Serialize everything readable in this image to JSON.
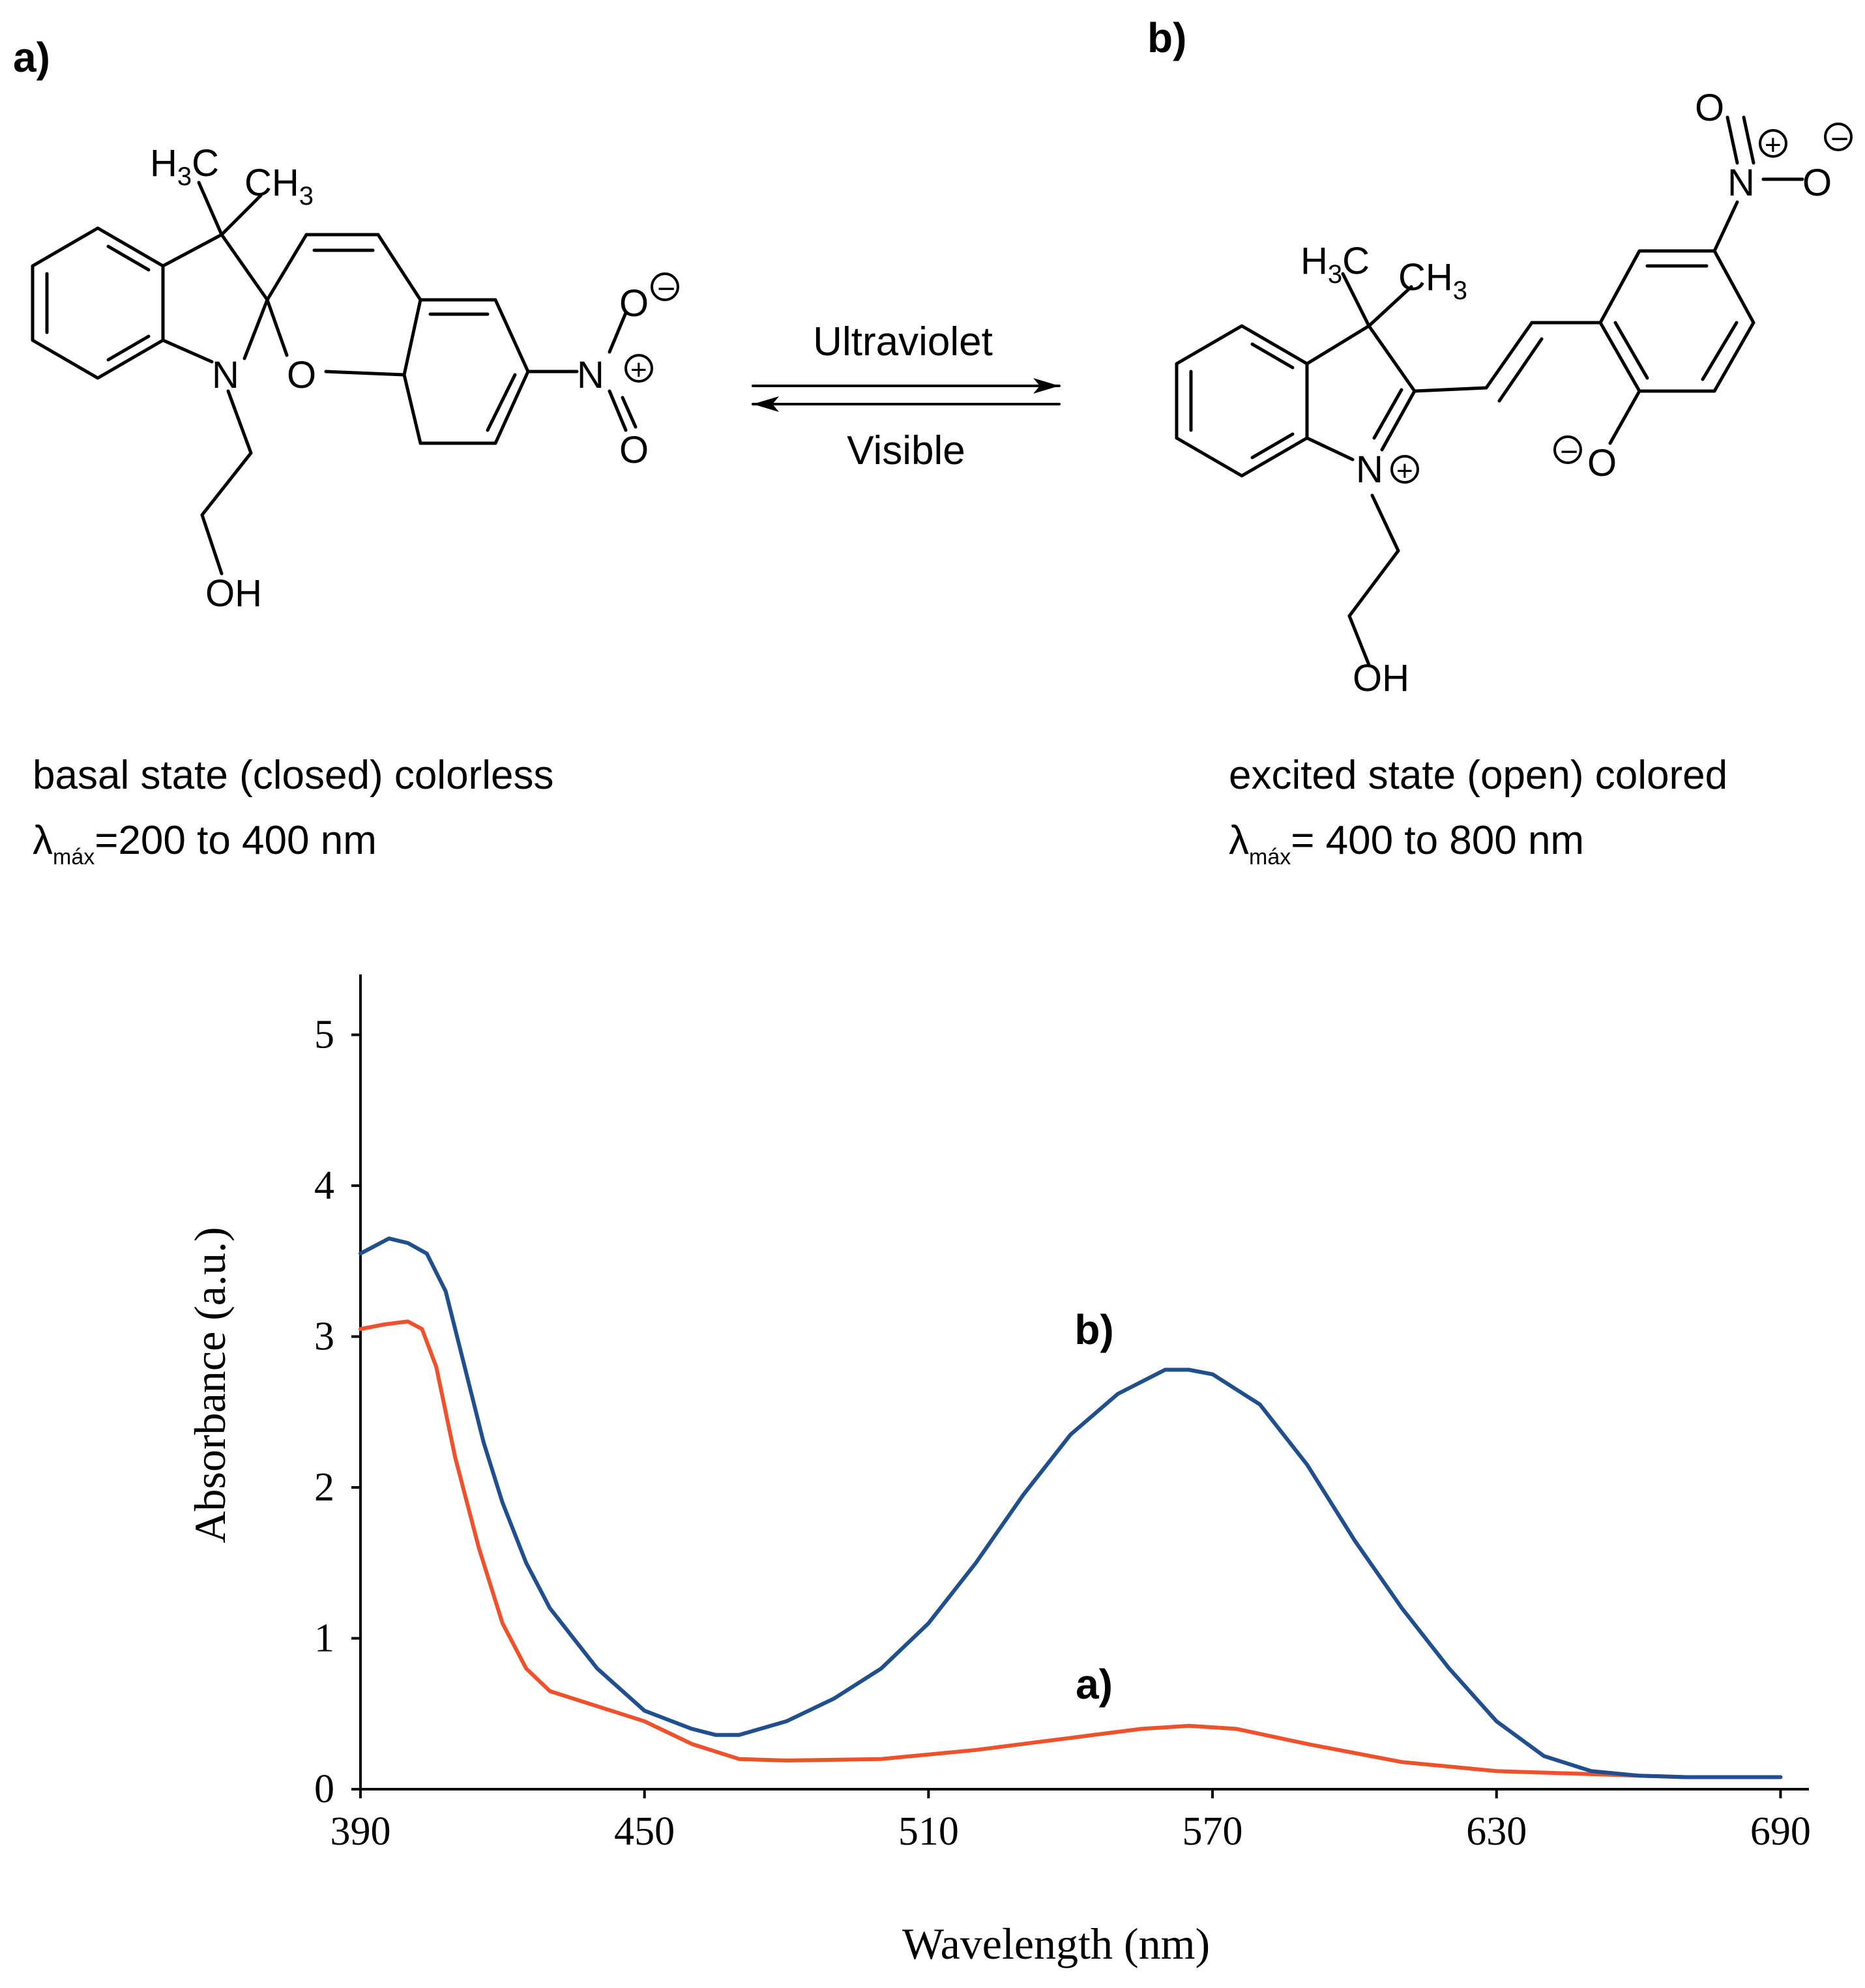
{
  "panel_a": {
    "label": "a)",
    "caption_line1": "basal state (closed) colorless",
    "lambda_symbol": "λ",
    "lambda_sub": "máx",
    "lambda_text": "=200 to 400 nm",
    "atoms": {
      "h3c": "H",
      "h3c_sub": "3",
      "h3c_c": "C",
      "ch3": "CH",
      "ch3_sub": "3",
      "n": "N",
      "o_ring": "O",
      "n_nitro": "N",
      "o_top": "O",
      "o_bottom": "O",
      "minus": "−",
      "plus": "+",
      "oh": "OH"
    }
  },
  "panel_b": {
    "label": "b)",
    "caption_line1": "excited state (open) colored",
    "lambda_symbol": "λ",
    "lambda_sub": "máx",
    "lambda_text": "= 400 to 800 nm",
    "atoms": {
      "h3c": "H",
      "h3c_sub": "3",
      "h3c_c": "C",
      "ch3": "CH",
      "ch3_sub": "3",
      "n": "N",
      "n_plus": "+",
      "o_phenolate": "O",
      "o_minus": "−",
      "n_nitro": "N",
      "nitro_plus": "+",
      "o_left": "O",
      "o_right": "O",
      "o_right_minus": "−",
      "oh": "OH"
    }
  },
  "equilibrium": {
    "forward_label": "Ultraviolet",
    "reverse_label": "Visible"
  },
  "colors": {
    "series_a": "#f0502a",
    "series_b": "#1f4f8f",
    "ink": "#000000"
  },
  "chart_data": {
    "type": "line",
    "xlabel": "Wavelength (nm)",
    "ylabel": "Absorbance (a.u.)",
    "xlim": [
      390,
      696
    ],
    "ylim": [
      0,
      5.4
    ],
    "xticks": [
      "390",
      "450",
      "510",
      "570",
      "630",
      "690"
    ],
    "yticks": [
      "0",
      "1",
      "2",
      "3",
      "4",
      "5"
    ],
    "series": [
      {
        "name": "a)",
        "color": "#f0502a",
        "x": [
          390,
          395,
          400,
          403,
          406,
          410,
          415,
          420,
          425,
          430,
          440,
          450,
          460,
          470,
          480,
          500,
          520,
          540,
          555,
          565,
          575,
          590,
          610,
          630,
          650,
          670,
          690
        ],
        "y": [
          3.05,
          3.08,
          3.1,
          3.05,
          2.8,
          2.2,
          1.6,
          1.1,
          0.8,
          0.65,
          0.55,
          0.45,
          0.3,
          0.2,
          0.19,
          0.2,
          0.26,
          0.34,
          0.4,
          0.42,
          0.4,
          0.3,
          0.18,
          0.12,
          0.1,
          0.08,
          0.08
        ]
      },
      {
        "name": "b)",
        "color": "#1f4f8f",
        "x": [
          390,
          393,
          396,
          400,
          404,
          408,
          412,
          416,
          420,
          425,
          430,
          440,
          450,
          460,
          465,
          470,
          480,
          490,
          500,
          510,
          520,
          530,
          540,
          550,
          560,
          565,
          570,
          580,
          590,
          600,
          610,
          620,
          630,
          640,
          650,
          660,
          670,
          690
        ],
        "y": [
          3.55,
          3.6,
          3.65,
          3.62,
          3.55,
          3.3,
          2.8,
          2.3,
          1.9,
          1.5,
          1.2,
          0.8,
          0.52,
          0.4,
          0.36,
          0.36,
          0.45,
          0.6,
          0.8,
          1.1,
          1.5,
          1.95,
          2.35,
          2.62,
          2.78,
          2.78,
          2.75,
          2.55,
          2.15,
          1.65,
          1.2,
          0.8,
          0.45,
          0.22,
          0.12,
          0.09,
          0.08,
          0.08
        ]
      }
    ],
    "annotations": [
      {
        "text": "b)",
        "x": 545,
        "y": 2.95
      },
      {
        "text": "a)",
        "x": 545,
        "y": 0.6
      }
    ]
  }
}
